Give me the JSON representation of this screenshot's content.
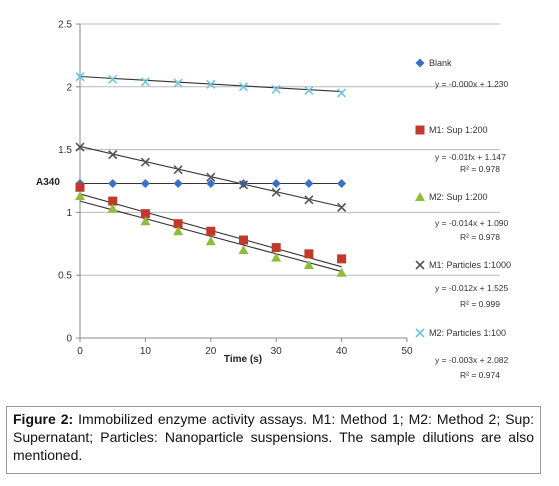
{
  "chart_data": {
    "type": "scatter",
    "title": "",
    "xlabel": "Time (s)",
    "ylabel": "A340",
    "xlim": [
      0,
      50
    ],
    "ylim": [
      0,
      2.5
    ],
    "x_ticks": [
      "0",
      "10",
      "20",
      "30",
      "40",
      "50"
    ],
    "y_ticks": [
      "0",
      "0.5",
      "1",
      "1.5",
      "2",
      "2.5"
    ],
    "grid": "horizontal",
    "legend_position": "right",
    "x": [
      0,
      5,
      10,
      15,
      20,
      25,
      30,
      35,
      40
    ],
    "series": [
      {
        "name": "Blank",
        "marker": "diamond",
        "color": "#3b6fc4",
        "values": [
          1.23,
          1.23,
          1.23,
          1.23,
          1.23,
          1.23,
          1.23,
          1.23,
          1.23
        ],
        "trend": {
          "slope": 0.0,
          "intercept": 1.23
        },
        "equation": "y = -0.000x + 1.230",
        "r2": ""
      },
      {
        "name": "M1: Sup 1:200",
        "marker": "square",
        "color": "#c0392b",
        "values": [
          1.2,
          1.09,
          0.99,
          0.91,
          0.85,
          0.78,
          0.72,
          0.67,
          0.63
        ],
        "trend": {
          "slope": -0.0145,
          "intercept": 1.147
        },
        "equation": "y = -0.01fx + 1.147",
        "r2": "R² = 0.978"
      },
      {
        "name": "M2: Sup 1:200",
        "marker": "triangle",
        "color": "#8fbc3a",
        "values": [
          1.13,
          1.03,
          0.93,
          0.85,
          0.77,
          0.7,
          0.64,
          0.58,
          0.52
        ],
        "trend": {
          "slope": -0.014,
          "intercept": 1.09
        },
        "equation": "y = -0.014x + 1.090",
        "r2": "R² = 0.978"
      },
      {
        "name": "M1: Particles 1:1000",
        "marker": "x",
        "color": "#555555",
        "values": [
          1.52,
          1.46,
          1.4,
          1.34,
          1.28,
          1.22,
          1.16,
          1.1,
          1.04
        ],
        "trend": {
          "slope": -0.012,
          "intercept": 1.525
        },
        "equation": "y = -0.012x + 1.525",
        "r2": "R² = 0.999"
      },
      {
        "name": "M2: Particles 1:100",
        "marker": "x",
        "color": "#6fc6e0",
        "values": [
          2.08,
          2.06,
          2.04,
          2.03,
          2.02,
          2.0,
          1.98,
          1.97,
          1.95
        ],
        "trend": {
          "slope": -0.003,
          "intercept": 2.082
        },
        "equation": "y = -0.003x + 2.082",
        "r2": "R² = 0.974"
      }
    ]
  },
  "caption": {
    "label": "Figure 2:",
    "text": " Immobilized enzyme activity assays. M1: Method 1; M2: Method 2; Sup: Supernatant; Particles: Nanoparticle suspensions. The sample dilutions are also mentioned."
  }
}
